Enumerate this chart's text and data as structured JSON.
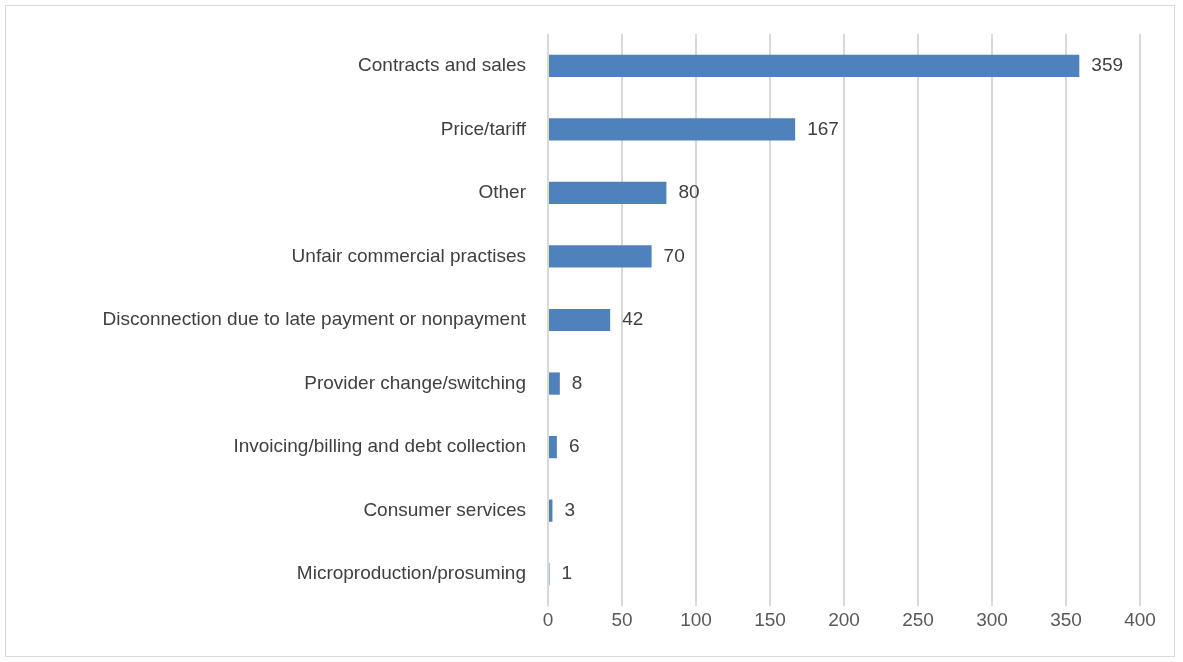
{
  "chart_data": {
    "type": "bar",
    "orientation": "horizontal",
    "categories": [
      "Contracts and sales",
      "Price/tariff",
      "Other",
      "Unfair commercial practises",
      "Disconnection due to late payment or nonpayment",
      "Provider change/switching",
      "Invoicing/billing and debt collection",
      "Consumer services",
      "Microproduction/prosuming"
    ],
    "values": [
      359,
      167,
      80,
      70,
      42,
      8,
      6,
      3,
      1
    ],
    "color": "#4f81bd",
    "xlim": [
      0,
      400
    ],
    "xticks": [
      0,
      50,
      100,
      150,
      200,
      250,
      300,
      350,
      400
    ],
    "grid": "x",
    "data_labels": true,
    "legend": false
  }
}
